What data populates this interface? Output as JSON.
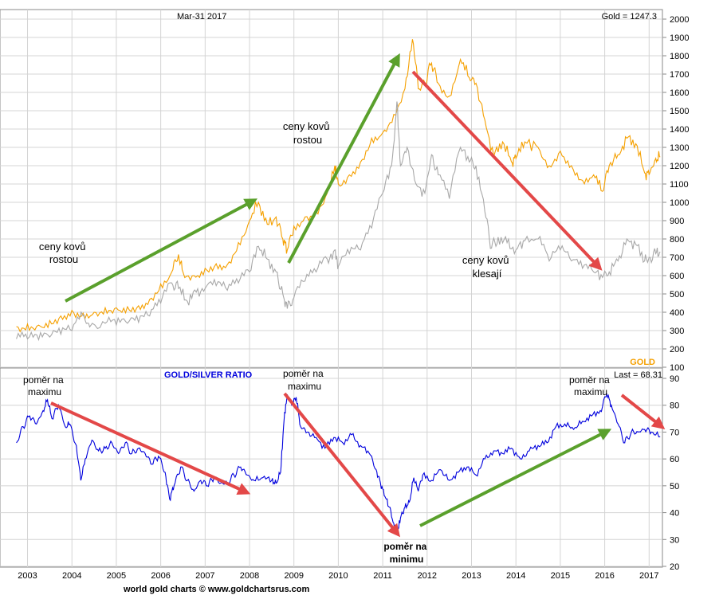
{
  "header": {
    "date": "Mar-31  2017",
    "gold_last": "Gold = 1247.3"
  },
  "footer": {
    "credit": "world gold charts © www.goldchartsrus.com"
  },
  "colors": {
    "gold": "#f5a000",
    "silver": "#a8a8a8",
    "ratio": "#0000dd",
    "arrow_green": "#5aa02c",
    "arrow_red": "#e34848",
    "grid": "#d4d4d4"
  },
  "chart_data": [
    {
      "type": "line",
      "title": "",
      "ylim": [
        100,
        2000
      ],
      "y_ticks": [
        "100",
        "200",
        "300",
        "400",
        "500",
        "600",
        "700",
        "800",
        "900",
        "1000",
        "1100",
        "1200",
        "1300",
        "1400",
        "1500",
        "1600",
        "1700",
        "1800",
        "1900",
        "2000"
      ],
      "x_ticks": [
        "2003",
        "2004",
        "2005",
        "2006",
        "2007",
        "2008",
        "2009",
        "2010",
        "2011",
        "2012",
        "2013",
        "2014",
        "2015",
        "2016",
        "2017"
      ],
      "legend": "GOLD",
      "series": [
        {
          "name": "GOLD",
          "points": [
            [
              2002.75,
              322
            ],
            [
              2003.0,
              335
            ],
            [
              2003.25,
              330
            ],
            [
              2003.5,
              355
            ],
            [
              2003.75,
              380
            ],
            [
              2004.0,
              410
            ],
            [
              2004.25,
              395
            ],
            [
              2004.5,
              400
            ],
            [
              2004.75,
              425
            ],
            [
              2005.0,
              425
            ],
            [
              2005.25,
              430
            ],
            [
              2005.5,
              435
            ],
            [
              2005.75,
              470
            ],
            [
              2006.0,
              555
            ],
            [
              2006.25,
              620
            ],
            [
              2006.4,
              715
            ],
            [
              2006.5,
              620
            ],
            [
              2006.75,
              600
            ],
            [
              2007.0,
              640
            ],
            [
              2007.25,
              665
            ],
            [
              2007.5,
              660
            ],
            [
              2007.75,
              780
            ],
            [
              2008.0,
              900
            ],
            [
              2008.2,
              1000
            ],
            [
              2008.4,
              880
            ],
            [
              2008.6,
              920
            ],
            [
              2008.75,
              800
            ],
            [
              2008.85,
              740
            ],
            [
              2009.0,
              870
            ],
            [
              2009.25,
              920
            ],
            [
              2009.5,
              950
            ],
            [
              2009.75,
              1050
            ],
            [
              2009.92,
              1200
            ],
            [
              2010.0,
              1100
            ],
            [
              2010.25,
              1150
            ],
            [
              2010.5,
              1220
            ],
            [
              2010.75,
              1350
            ],
            [
              2011.0,
              1380
            ],
            [
              2011.25,
              1480
            ],
            [
              2011.5,
              1620
            ],
            [
              2011.67,
              1890
            ],
            [
              2011.8,
              1620
            ],
            [
              2011.95,
              1650
            ],
            [
              2012.1,
              1760
            ],
            [
              2012.25,
              1650
            ],
            [
              2012.5,
              1580
            ],
            [
              2012.75,
              1780
            ],
            [
              2012.95,
              1680
            ],
            [
              2013.1,
              1650
            ],
            [
              2013.3,
              1450
            ],
            [
              2013.5,
              1250
            ],
            [
              2013.7,
              1330
            ],
            [
              2013.9,
              1220
            ],
            [
              2014.0,
              1240
            ],
            [
              2014.2,
              1330
            ],
            [
              2014.5,
              1300
            ],
            [
              2014.75,
              1200
            ],
            [
              2015.0,
              1280
            ],
            [
              2015.25,
              1200
            ],
            [
              2015.5,
              1120
            ],
            [
              2015.75,
              1150
            ],
            [
              2015.95,
              1060
            ],
            [
              2016.1,
              1200
            ],
            [
              2016.3,
              1260
            ],
            [
              2016.5,
              1350
            ],
            [
              2016.7,
              1320
            ],
            [
              2016.9,
              1160
            ],
            [
              2017.0,
              1150
            ],
            [
              2017.15,
              1240
            ],
            [
              2017.25,
              1247
            ]
          ]
        },
        {
          "name": "",
          "points": [
            [
              2002.75,
              255
            ],
            [
              2003.0,
              255
            ],
            [
              2003.25,
              250
            ],
            [
              2003.5,
              265
            ],
            [
              2003.75,
              280
            ],
            [
              2004.0,
              300
            ],
            [
              2004.25,
              380
            ],
            [
              2004.4,
              320
            ],
            [
              2004.75,
              340
            ],
            [
              2005.0,
              330
            ],
            [
              2005.25,
              340
            ],
            [
              2005.5,
              345
            ],
            [
              2005.75,
              380
            ],
            [
              2006.0,
              450
            ],
            [
              2006.25,
              560
            ],
            [
              2006.4,
              530
            ],
            [
              2006.6,
              460
            ],
            [
              2006.8,
              510
            ],
            [
              2007.0,
              530
            ],
            [
              2007.25,
              545
            ],
            [
              2007.5,
              520
            ],
            [
              2007.75,
              560
            ],
            [
              2008.0,
              620
            ],
            [
              2008.2,
              760
            ],
            [
              2008.4,
              690
            ],
            [
              2008.6,
              620
            ],
            [
              2008.75,
              500
            ],
            [
              2008.85,
              420
            ],
            [
              2009.0,
              480
            ],
            [
              2009.25,
              570
            ],
            [
              2009.5,
              620
            ],
            [
              2009.75,
              690
            ],
            [
              2009.92,
              740
            ],
            [
              2010.0,
              650
            ],
            [
              2010.25,
              720
            ],
            [
              2010.5,
              740
            ],
            [
              2010.75,
              860
            ],
            [
              2011.0,
              1050
            ],
            [
              2011.2,
              1200
            ],
            [
              2011.32,
              1550
            ],
            [
              2011.4,
              1200
            ],
            [
              2011.55,
              1300
            ],
            [
              2011.75,
              1100
            ],
            [
              2011.95,
              1050
            ],
            [
              2012.1,
              1260
            ],
            [
              2012.25,
              1150
            ],
            [
              2012.5,
              1020
            ],
            [
              2012.75,
              1300
            ],
            [
              2012.95,
              1220
            ],
            [
              2013.1,
              1200
            ],
            [
              2013.3,
              950
            ],
            [
              2013.45,
              750
            ],
            [
              2013.6,
              810
            ],
            [
              2013.8,
              780
            ],
            [
              2014.0,
              740
            ],
            [
              2014.2,
              790
            ],
            [
              2014.5,
              800
            ],
            [
              2014.75,
              680
            ],
            [
              2015.0,
              740
            ],
            [
              2015.25,
              680
            ],
            [
              2015.5,
              640
            ],
            [
              2015.75,
              620
            ],
            [
              2015.95,
              590
            ],
            [
              2016.1,
              620
            ],
            [
              2016.3,
              680
            ],
            [
              2016.5,
              800
            ],
            [
              2016.7,
              770
            ],
            [
              2016.9,
              680
            ],
            [
              2017.0,
              700
            ],
            [
              2017.15,
              720
            ],
            [
              2017.25,
              730
            ]
          ]
        }
      ],
      "annotations": [
        "ceny kovů\nrostou",
        "ceny kovů\nrostou",
        "ceny kovů\nklesají"
      ]
    },
    {
      "type": "line",
      "title": "GOLD/SILVER RATIO",
      "ylim": [
        20,
        90
      ],
      "y_ticks": [
        "20",
        "30",
        "40",
        "50",
        "60",
        "70",
        "80",
        "90"
      ],
      "last": "Last = 68.31",
      "series": [
        {
          "name": "",
          "points": [
            [
              2002.75,
              66
            ],
            [
              2002.9,
              72
            ],
            [
              2003.05,
              76
            ],
            [
              2003.2,
              73
            ],
            [
              2003.35,
              78
            ],
            [
              2003.45,
              82
            ],
            [
              2003.55,
              75
            ],
            [
              2003.7,
              80
            ],
            [
              2003.85,
              72
            ],
            [
              2003.95,
              73
            ],
            [
              2004.1,
              65
            ],
            [
              2004.2,
              52
            ],
            [
              2004.3,
              60
            ],
            [
              2004.45,
              67
            ],
            [
              2004.6,
              63
            ],
            [
              2004.75,
              64
            ],
            [
              2004.9,
              66
            ],
            [
              2005.05,
              62
            ],
            [
              2005.2,
              66
            ],
            [
              2005.35,
              62
            ],
            [
              2005.5,
              64
            ],
            [
              2005.65,
              62
            ],
            [
              2005.8,
              58
            ],
            [
              2005.95,
              61
            ],
            [
              2006.1,
              55
            ],
            [
              2006.2,
              45
            ],
            [
              2006.3,
              50
            ],
            [
              2006.45,
              57
            ],
            [
              2006.6,
              52
            ],
            [
              2006.75,
              48
            ],
            [
              2006.9,
              52
            ],
            [
              2007.05,
              50
            ],
            [
              2007.2,
              53
            ],
            [
              2007.35,
              51
            ],
            [
              2007.5,
              51
            ],
            [
              2007.65,
              54
            ],
            [
              2007.8,
              57
            ],
            [
              2007.95,
              54
            ],
            [
              2008.1,
              52
            ],
            [
              2008.3,
              53
            ],
            [
              2008.5,
              52
            ],
            [
              2008.6,
              51
            ],
            [
              2008.7,
              55
            ],
            [
              2008.78,
              75
            ],
            [
              2008.85,
              84
            ],
            [
              2008.95,
              80
            ],
            [
              2009.05,
              83
            ],
            [
              2009.15,
              72
            ],
            [
              2009.3,
              70
            ],
            [
              2009.5,
              68
            ],
            [
              2009.7,
              64
            ],
            [
              2009.9,
              68
            ],
            [
              2010.1,
              66
            ],
            [
              2010.3,
              69
            ],
            [
              2010.5,
              65
            ],
            [
              2010.7,
              62
            ],
            [
              2010.85,
              56
            ],
            [
              2010.95,
              51
            ],
            [
              2011.05,
              46
            ],
            [
              2011.15,
              42
            ],
            [
              2011.25,
              36
            ],
            [
              2011.32,
              32
            ],
            [
              2011.4,
              38
            ],
            [
              2011.5,
              42
            ],
            [
              2011.6,
              44
            ],
            [
              2011.7,
              53
            ],
            [
              2011.8,
              48
            ],
            [
              2011.9,
              54
            ],
            [
              2012.1,
              52
            ],
            [
              2012.3,
              56
            ],
            [
              2012.5,
              52
            ],
            [
              2012.7,
              55
            ],
            [
              2012.9,
              57
            ],
            [
              2013.1,
              54
            ],
            [
              2013.3,
              60
            ],
            [
              2013.5,
              63
            ],
            [
              2013.7,
              62
            ],
            [
              2013.9,
              64
            ],
            [
              2014.1,
              60
            ],
            [
              2014.3,
              63
            ],
            [
              2014.5,
              65
            ],
            [
              2014.7,
              66
            ],
            [
              2014.9,
              72
            ],
            [
              2015.1,
              73
            ],
            [
              2015.3,
              71
            ],
            [
              2015.5,
              74
            ],
            [
              2015.7,
              76
            ],
            [
              2015.9,
              78
            ],
            [
              2016.05,
              84
            ],
            [
              2016.15,
              80
            ],
            [
              2016.3,
              73
            ],
            [
              2016.45,
              66
            ],
            [
              2016.6,
              70
            ],
            [
              2016.75,
              70
            ],
            [
              2016.9,
              71
            ],
            [
              2017.05,
              70
            ],
            [
              2017.25,
              68.3
            ]
          ]
        }
      ],
      "annotations": [
        "poměr na\nmaximu",
        "poměr na\nmaximu",
        "poměr na\nminimu",
        "poměr na\nmaximu"
      ]
    }
  ],
  "labels": {
    "top_left_text_1": "ceny kovů",
    "top_left_text_2": "rostou",
    "top_mid_text_1": "ceny kovů",
    "top_mid_text_2": "rostou",
    "top_right_text_1": "ceny kovů",
    "top_right_text_2": "klesají",
    "b1_1": "poměr na",
    "b1_2": "maximu",
    "b2_1": "poměr na",
    "b2_2": "maximu",
    "b3_1": "poměr na",
    "b3_2": "minimu",
    "b4_1": "poměr na",
    "b4_2": "maximu"
  }
}
